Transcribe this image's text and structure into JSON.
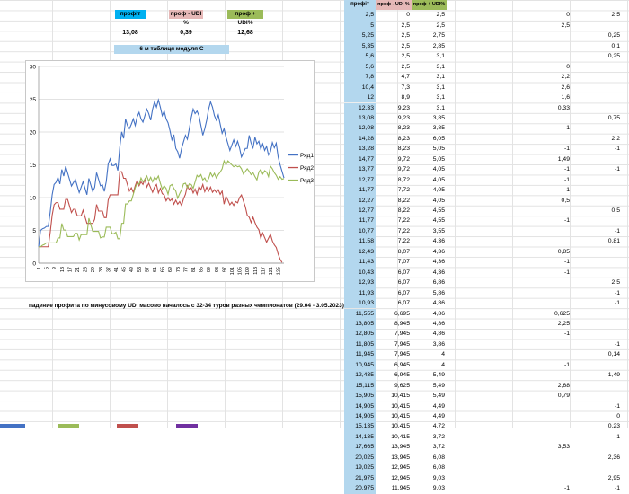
{
  "headers": {
    "h1": "профіт",
    "h2": "проф - UDI %",
    "h3": "проф + UDI%"
  },
  "values": {
    "v1": "13,08",
    "v2": "0,39",
    "v3": "12,68"
  },
  "table_title": "6 м таблиця модуля С",
  "note": "падение профита по минусовому UDI масово началось с 32-34 туров разных чемпионатов (29.04 - 3.05.2023)",
  "colors": {
    "blue": "#00b0f0",
    "pink": "#e6b8b7",
    "green": "#9bbb59",
    "light_blue": "#b3d7ee",
    "s1": "#4472c4",
    "s2": "#c0504d",
    "s3": "#9bbb59"
  },
  "col_headers": [
    "профіт",
    "проф - UDI %",
    "проф + UDI%"
  ],
  "rows": [
    [
      "2,5",
      "0",
      "2,5"
    ],
    [
      "5",
      "2,5",
      "2,5"
    ],
    [
      "5,25",
      "2,5",
      "2,75"
    ],
    [
      "5,35",
      "2,5",
      "2,85"
    ],
    [
      "5,6",
      "2,5",
      "3,1"
    ],
    [
      "5,6",
      "2,5",
      "3,1"
    ],
    [
      "7,8",
      "4,7",
      "3,1"
    ],
    [
      "10,4",
      "7,3",
      "3,1"
    ],
    [
      "12",
      "8,9",
      "3,1"
    ],
    [
      "12,33",
      "9,23",
      "3,1"
    ],
    [
      "13,08",
      "9,23",
      "3,85"
    ],
    [
      "12,08",
      "8,23",
      "3,85"
    ],
    [
      "14,28",
      "8,23",
      "6,05"
    ],
    [
      "13,28",
      "8,23",
      "5,05"
    ],
    [
      "14,77",
      "9,72",
      "5,05"
    ],
    [
      "13,77",
      "9,72",
      "4,05"
    ],
    [
      "12,77",
      "8,72",
      "4,05"
    ],
    [
      "11,77",
      "7,72",
      "4,05"
    ],
    [
      "12,27",
      "8,22",
      "4,05"
    ],
    [
      "12,77",
      "8,22",
      "4,55"
    ],
    [
      "11,77",
      "7,22",
      "4,55"
    ],
    [
      "10,77",
      "7,22",
      "3,55"
    ],
    [
      "11,58",
      "7,22",
      "4,36"
    ],
    [
      "12,43",
      "8,07",
      "4,36"
    ],
    [
      "11,43",
      "7,07",
      "4,36"
    ],
    [
      "10,43",
      "6,07",
      "4,36"
    ],
    [
      "12,93",
      "6,07",
      "6,86"
    ],
    [
      "11,93",
      "6,07",
      "5,86"
    ],
    [
      "10,93",
      "6,07",
      "4,86"
    ],
    [
      "11,555",
      "6,695",
      "4,86"
    ],
    [
      "13,805",
      "8,945",
      "4,86"
    ],
    [
      "12,805",
      "7,945",
      "4,86"
    ],
    [
      "11,805",
      "7,945",
      "3,86"
    ],
    [
      "11,945",
      "7,945",
      "4"
    ],
    [
      "10,945",
      "6,945",
      "4"
    ],
    [
      "12,435",
      "6,945",
      "5,49"
    ],
    [
      "15,115",
      "9,625",
      "5,49"
    ],
    [
      "15,905",
      "10,415",
      "5,49"
    ],
    [
      "14,905",
      "10,415",
      "4,49"
    ],
    [
      "14,905",
      "10,415",
      "4,49"
    ],
    [
      "15,135",
      "10,415",
      "4,72"
    ],
    [
      "14,135",
      "10,415",
      "3,72"
    ],
    [
      "17,665",
      "13,945",
      "3,72"
    ],
    [
      "20,025",
      "13,945",
      "6,08"
    ],
    [
      "19,025",
      "12,945",
      "6,08"
    ],
    [
      "21,975",
      "12,945",
      "9,03"
    ],
    [
      "20,975",
      "11,945",
      "9,03"
    ]
  ],
  "right_col1": [
    {
      "row": 1,
      "v": "0"
    },
    {
      "row": 2,
      "v": "2,5"
    },
    {
      "row": 6,
      "v": "0"
    },
    {
      "row": 7,
      "v": "2,2"
    },
    {
      "row": 8,
      "v": "2,6"
    },
    {
      "row": 9,
      "v": "1,6"
    },
    {
      "row": 10,
      "v": "0,33"
    },
    {
      "row": 12,
      "v": "-1"
    },
    {
      "row": 14,
      "v": "-1"
    },
    {
      "row": 15,
      "v": "1,49"
    },
    {
      "row": 16,
      "v": "-1"
    },
    {
      "row": 17,
      "v": "-1"
    },
    {
      "row": 18,
      "v": "-1"
    },
    {
      "row": 19,
      "v": "0,5"
    },
    {
      "row": 21,
      "v": "-1"
    },
    {
      "row": 24,
      "v": "0,85"
    },
    {
      "row": 25,
      "v": "-1"
    },
    {
      "row": 26,
      "v": "-1"
    },
    {
      "row": 30,
      "v": "0,625"
    },
    {
      "row": 31,
      "v": "2,25"
    },
    {
      "row": 32,
      "v": "-1"
    },
    {
      "row": 35,
      "v": "-1"
    },
    {
      "row": 37,
      "v": "2,68"
    },
    {
      "row": 38,
      "v": "0,79"
    },
    {
      "row": 43,
      "v": "3,53"
    },
    {
      "row": 47,
      "v": "-1"
    }
  ],
  "right_col2": [
    {
      "row": 1,
      "v": "2,5"
    },
    {
      "row": 3,
      "v": "0,25"
    },
    {
      "row": 4,
      "v": "0,1"
    },
    {
      "row": 5,
      "v": "0,25"
    },
    {
      "row": 11,
      "v": "0,75"
    },
    {
      "row": 13,
      "v": "2,2"
    },
    {
      "row": 14,
      "v": "-1"
    },
    {
      "row": 16,
      "v": "-1"
    },
    {
      "row": 20,
      "v": "0,5"
    },
    {
      "row": 22,
      "v": "-1"
    },
    {
      "row": 23,
      "v": "0,81"
    },
    {
      "row": 27,
      "v": "2,5"
    },
    {
      "row": 28,
      "v": "-1"
    },
    {
      "row": 29,
      "v": "-1"
    },
    {
      "row": 33,
      "v": "-1"
    },
    {
      "row": 34,
      "v": "0,14"
    },
    {
      "row": 36,
      "v": "1,49"
    },
    {
      "row": 39,
      "v": "-1"
    },
    {
      "row": 40,
      "v": "0"
    },
    {
      "row": 41,
      "v": "0,23"
    },
    {
      "row": 42,
      "v": "-1"
    },
    {
      "row": 44,
      "v": "2,36"
    },
    {
      "row": 46,
      "v": "2,95"
    },
    {
      "row": 47,
      "v": "-1"
    }
  ],
  "chart_data": {
    "type": "line",
    "ylim": [
      0,
      30
    ],
    "yticks": [
      "0",
      "5",
      "10",
      "15",
      "20",
      "25",
      "30"
    ],
    "xticks": [
      "1",
      "5",
      "9",
      "13",
      "17",
      "21",
      "25",
      "29",
      "33",
      "37",
      "41",
      "45",
      "49",
      "53",
      "57",
      "61",
      "65",
      "69",
      "73",
      "77",
      "81",
      "85",
      "89",
      "93",
      "97",
      "101",
      "105",
      "109",
      "113",
      "117",
      "121",
      "125"
    ],
    "x_count": 128,
    "legend_placement": "right",
    "series": [
      {
        "name": "Ряд1",
        "color": "#4472c4",
        "values": [
          2.5,
          5,
          5.25,
          5.35,
          5.6,
          5.6,
          7.8,
          10.4,
          12,
          12.33,
          13.08,
          12.08,
          14.28,
          13.28,
          14.77,
          13.77,
          12.77,
          11.77,
          12.27,
          12.77,
          11.77,
          10.77,
          11.58,
          12.43,
          11.43,
          10.43,
          12.93,
          11.93,
          10.93,
          11.555,
          13.805,
          12.805,
          11.805,
          11.945,
          10.945,
          12.435,
          15.115,
          15.905,
          14.905,
          14.905,
          15.135,
          14.135,
          17.665,
          20.025,
          19.025,
          21.975,
          20.975,
          20.5,
          21.2,
          22,
          21,
          22.3,
          23,
          22,
          21.5,
          22.5,
          23.5,
          22.8,
          21.8,
          23.5,
          24.6,
          23.8,
          24.9,
          23.8,
          22.5,
          23.2,
          22,
          21.4,
          20.2,
          18.8,
          19.6,
          17.5,
          17,
          16,
          17.5,
          18.5,
          19.5,
          18.9,
          20.5,
          22.2,
          23.5,
          22.8,
          23.2,
          22.5,
          21,
          19.5,
          20.5,
          21.8,
          23.5,
          24.6,
          23.8,
          22.5,
          21.8,
          22.6,
          21.2,
          19.8,
          20.5,
          19.2,
          18.2,
          17.2,
          18,
          18.8,
          17.8,
          18.6,
          17.6,
          16.2,
          16.8,
          17.5,
          17.5,
          19.5,
          18.3,
          17.6,
          19.2,
          18.2,
          18.6,
          17.4,
          18.2,
          17.2,
          17.8,
          16.5,
          17,
          18.4,
          17.6,
          18.3,
          16.2,
          15,
          14,
          13
        ]
      },
      {
        "name": "Ряд2",
        "color": "#c0504d",
        "values": [
          2.5,
          2.5,
          2.5,
          2.5,
          2.5,
          2.5,
          4.7,
          7.3,
          8.9,
          9.23,
          9.23,
          8.23,
          8.23,
          8.23,
          9.72,
          9.72,
          8.72,
          7.72,
          8.22,
          8.22,
          7.22,
          7.22,
          7.22,
          8.07,
          7.07,
          6.07,
          6.07,
          6.07,
          6.07,
          6.695,
          8.945,
          7.945,
          7.945,
          7.945,
          6.945,
          6.945,
          9.625,
          10.415,
          10.415,
          10.415,
          10.415,
          10.415,
          13.945,
          13.945,
          12.945,
          12.945,
          11.945,
          11,
          11.5,
          10.8,
          11.8,
          12.6,
          11.8,
          12.4,
          12,
          12.8,
          11.6,
          12.2,
          11.5,
          10.8,
          11.6,
          12,
          10.7,
          11.4,
          10.6,
          10.4,
          9.5,
          10,
          9.5,
          9.8,
          9,
          9.6,
          9,
          9.4,
          8.8,
          9.8,
          10.5,
          11.8,
          11.2,
          11.5,
          10.7,
          11.3,
          10.5,
          11.7,
          11.2,
          12,
          10.9,
          11.6,
          11,
          11.6,
          10.8,
          11.2,
          10.8,
          11.2,
          10.5,
          11,
          9,
          10.2,
          9.6,
          8.9,
          9.3,
          8.8,
          9.4,
          9.2,
          10,
          10.4,
          9.5,
          8.6,
          7.3,
          7,
          6.2,
          7,
          6.2,
          5.5,
          5.1,
          3.8,
          4.6,
          3.9,
          3.2,
          3.8,
          4.4,
          3.4,
          2.8,
          2.4,
          1.4,
          0.6,
          0.1
        ]
      },
      {
        "name": "Ряд3",
        "color": "#9bbb59",
        "values": [
          2.5,
          2.5,
          2.75,
          2.85,
          3.1,
          3.1,
          3.1,
          3.1,
          3.1,
          3.1,
          3.85,
          3.85,
          6.05,
          5.05,
          5.05,
          4.05,
          4.05,
          4.05,
          4.05,
          4.55,
          4.55,
          3.55,
          4.36,
          4.36,
          4.36,
          4.36,
          6.86,
          5.86,
          4.86,
          4.86,
          4.86,
          4.86,
          3.86,
          4,
          4,
          5.49,
          5.49,
          5.49,
          4.49,
          4.49,
          4.72,
          3.72,
          3.72,
          6.08,
          6.08,
          9.03,
          9.03,
          9.5,
          9.5,
          10.5,
          11.5,
          12.2,
          12,
          13,
          12.4,
          12.8,
          13.3,
          12.5,
          13.1,
          12.4,
          13.1,
          12.8,
          13.3,
          12.2,
          11.3,
          11.8,
          11.4,
          10.5,
          11.8,
          12,
          11.4,
          11,
          9.9,
          10.6,
          11.2,
          12.1,
          12.2,
          11.5,
          12.1,
          12,
          11.4,
          12.4,
          13.4,
          13.1,
          13.5,
          12.7,
          13,
          12.4,
          12.9,
          13.8,
          13.2,
          13.7,
          13,
          13.5,
          13.9,
          14.4,
          15.6,
          15,
          15.6,
          15.3,
          15,
          14.7,
          14.9,
          14.7,
          14.8,
          14.4,
          13.6,
          14,
          14.4,
          14,
          13.5,
          13.8,
          13.2,
          12.7,
          13.9,
          14.3,
          13.6,
          14.1,
          13.9,
          13.2,
          14.8,
          14.4,
          13.8,
          13.4,
          12.8,
          13.2,
          12.8,
          12.9
        ]
      }
    ]
  }
}
